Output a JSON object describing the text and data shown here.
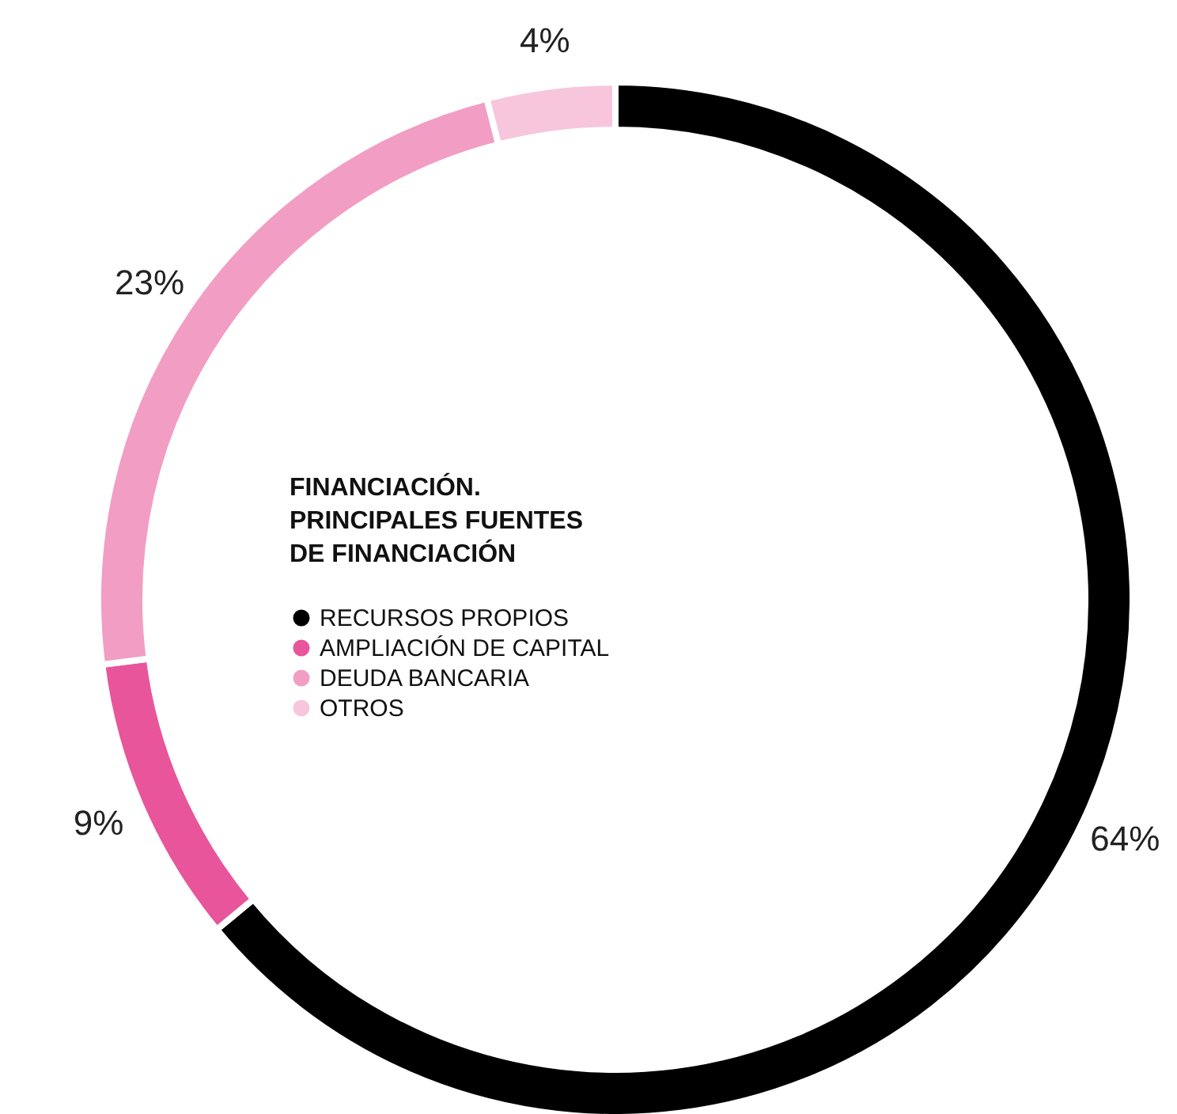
{
  "chart_data": {
    "type": "donut",
    "title": "FINANCIACIÓN.\nPRINCIPALES FUENTES\nDE FINANCIACIÓN",
    "categories": [
      "RECURSOS PROPIOS",
      "AMPLIACIÓN DE CAPITAL",
      "DEUDA BANCARIA",
      "OTROS"
    ],
    "values": [
      64,
      9,
      23,
      4
    ],
    "colors": [
      "#000000",
      "#e8559a",
      "#f29dc4",
      "#f7c6dc"
    ],
    "value_labels": [
      "64%",
      "9%",
      "23%",
      "4%"
    ],
    "legend": "left"
  }
}
